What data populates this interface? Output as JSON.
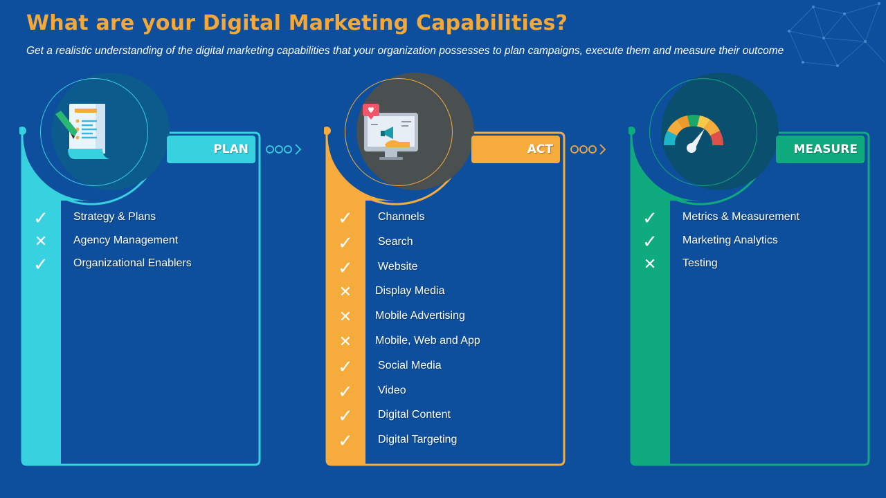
{
  "header": {
    "title": "What are your Digital Marketing Capabilities?",
    "subtitle": "Get a realistic understanding of the digital marketing capabilities that your organization possesses to plan campaigns, execute them and measure their outcome"
  },
  "columns": [
    {
      "tab": "PLAN",
      "accent": "#37d1e0",
      "icon": "checklist-document-icon",
      "items": [
        {
          "label": "Strategy & Plans",
          "status": "check"
        },
        {
          "label": "Agency Management",
          "status": "cross"
        },
        {
          "label": "Organizational Enablers",
          "status": "check"
        }
      ]
    },
    {
      "tab": "ACT",
      "accent": "#f5ac3c",
      "icon": "monitor-megaphone-icon",
      "items": [
        {
          "label": "Channels",
          "status": "check"
        },
        {
          "label": "Search",
          "status": "check"
        },
        {
          "label": "Website",
          "status": "check"
        },
        {
          "label": "Display Media",
          "status": "cross"
        },
        {
          "label": "Mobile Advertising",
          "status": "cross"
        },
        {
          "label": "Mobile, Web and App",
          "status": "cross"
        },
        {
          "label": "Social Media",
          "status": "check"
        },
        {
          "label": "Video",
          "status": "check"
        },
        {
          "label": "Digital Content",
          "status": "check"
        },
        {
          "label": "Digital Targeting",
          "status": "check"
        }
      ]
    },
    {
      "tab": "MEASURE",
      "accent": "#0faa7e",
      "icon": "speedometer-gauge-icon",
      "items": [
        {
          "label": "Metrics & Measurement",
          "status": "check"
        },
        {
          "label": "Marketing Analytics",
          "status": "check"
        },
        {
          "label": "Testing",
          "status": "cross"
        }
      ]
    }
  ],
  "colors": {
    "background": "#0d4f9c",
    "title": "#f5a83a"
  }
}
